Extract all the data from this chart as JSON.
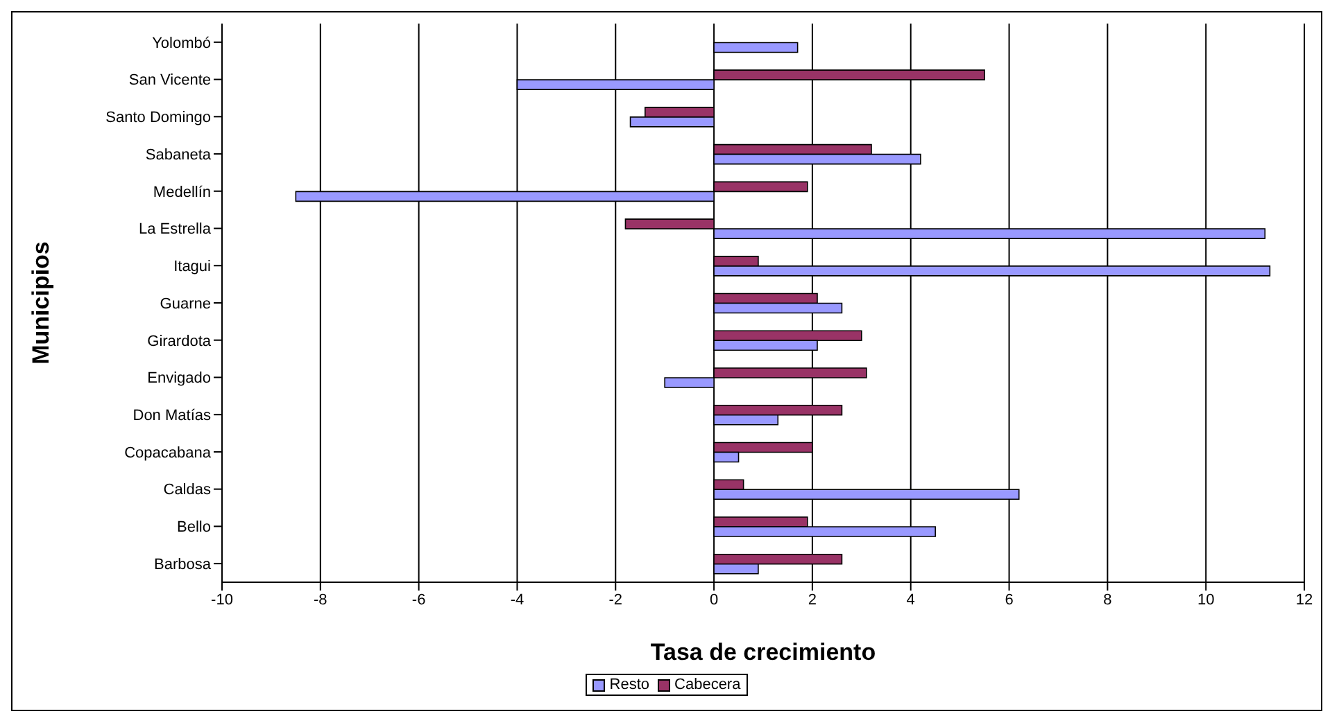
{
  "chart_data": {
    "type": "bar",
    "orientation": "horizontal",
    "xlabel": "Tasa de crecimiento",
    "ylabel": "Municipios",
    "categories": [
      "Yolombó",
      "San Vicente",
      "Santo Domingo",
      "Sabaneta",
      "Medellín",
      "La Estrella",
      "Itagui",
      "Guarne",
      "Girardota",
      "Envigado",
      "Don Matías",
      "Copacabana",
      "Caldas",
      "Bello",
      "Barbosa"
    ],
    "series": [
      {
        "name": "Resto",
        "color": "#9999ff",
        "values": [
          1.7,
          -4.0,
          -1.7,
          4.2,
          -8.5,
          11.2,
          11.3,
          2.6,
          2.1,
          -1.0,
          1.3,
          0.5,
          6.2,
          4.5,
          0.9
        ]
      },
      {
        "name": "Cabecera",
        "color": "#993366",
        "values": [
          0,
          5.5,
          -1.4,
          3.2,
          1.9,
          -1.8,
          0.9,
          2.1,
          3.0,
          3.1,
          2.6,
          2.0,
          0.6,
          1.9,
          2.6
        ]
      }
    ],
    "xlim": [
      -10,
      12
    ],
    "xticks": [
      -10,
      -8,
      -6,
      -4,
      -2,
      0,
      2,
      4,
      6,
      8,
      10,
      12
    ],
    "grid": "x",
    "legend": "bottom"
  }
}
